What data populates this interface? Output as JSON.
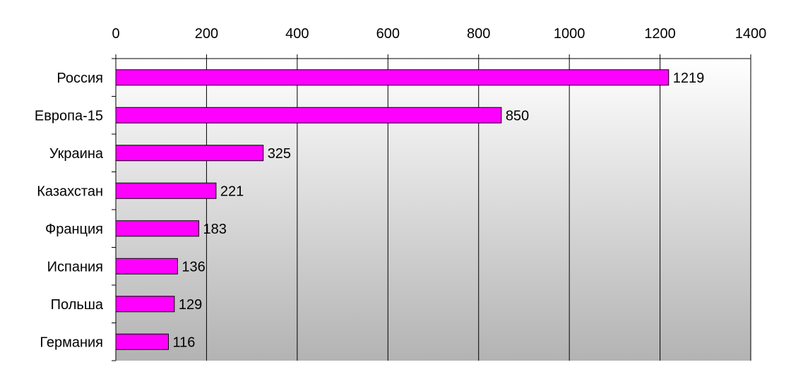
{
  "chart_data": {
    "type": "bar",
    "orientation": "horizontal",
    "categories": [
      "Россия",
      "Европа-15",
      "Украина",
      "Казахстан",
      "Франция",
      "Испания",
      "Польша",
      "Германия"
    ],
    "values": [
      1219,
      850,
      325,
      221,
      183,
      136,
      129,
      116
    ],
    "data_labels": [
      "1219",
      "850",
      "325",
      "221",
      "183",
      "136",
      "129",
      "116"
    ],
    "x_ticks": [
      "0",
      "200",
      "400",
      "600",
      "800",
      "1000",
      "1200",
      "1400"
    ],
    "xlim": [
      0,
      1400
    ],
    "x_axis_position": "top",
    "grid": "vertical",
    "legend": "none",
    "colors": {
      "bar_fill": "#ff00ff",
      "bar_stroke": "#000000",
      "plot_gradient_top": "#ffffff",
      "plot_gradient_bottom": "#b3b3b3",
      "grid_line": "#000000"
    }
  }
}
